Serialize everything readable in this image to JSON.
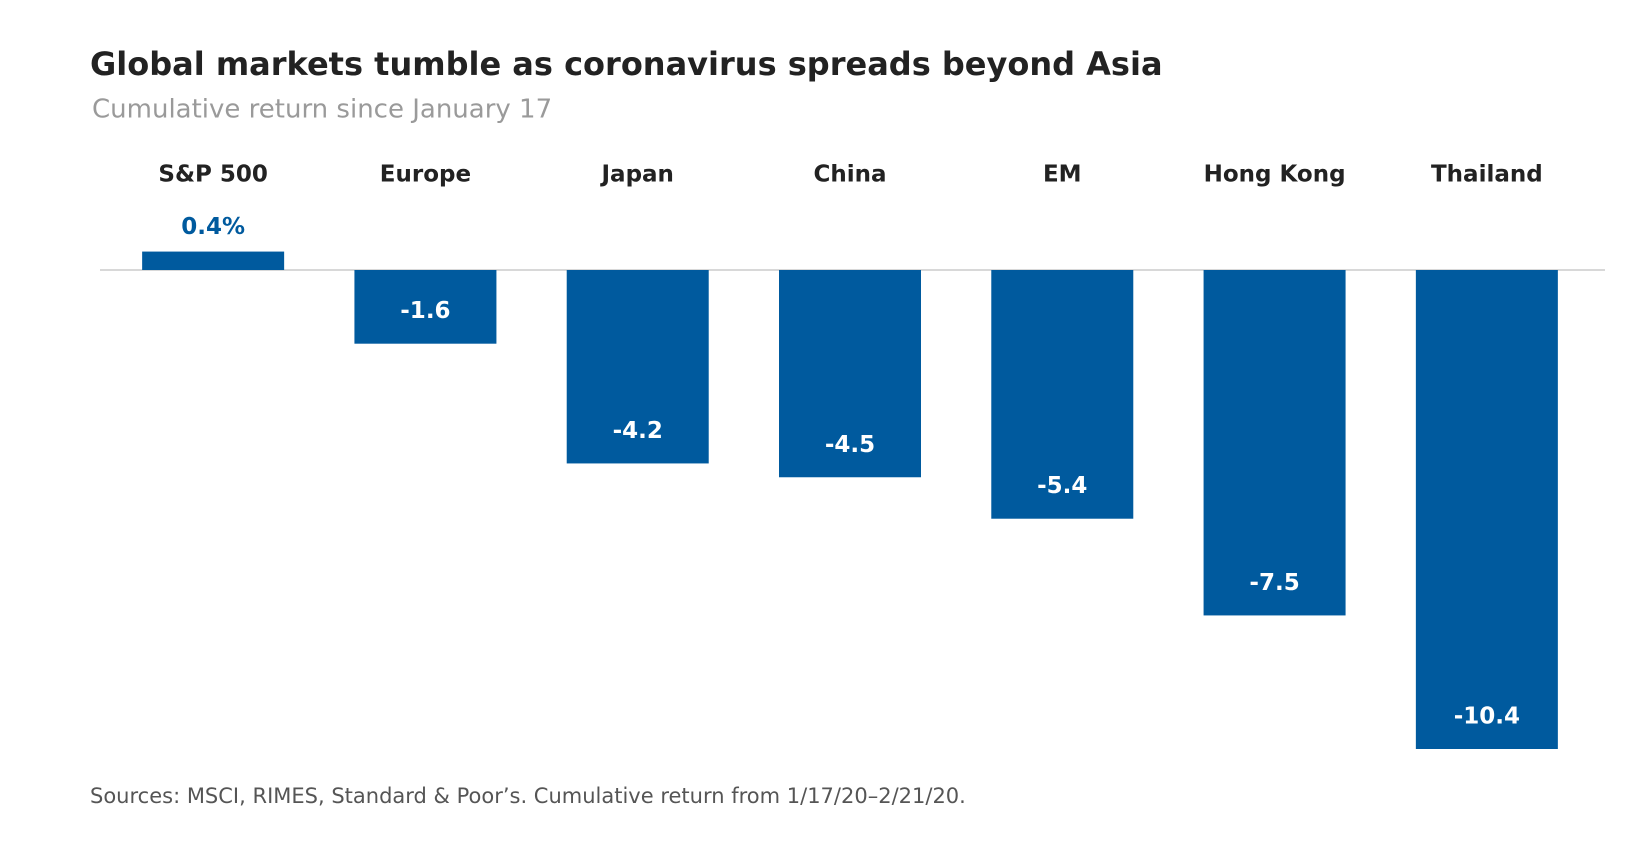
{
  "chart_data": {
    "type": "bar",
    "title": "Global markets tumble as coronavirus spreads beyond Asia",
    "subtitle": "Cumulative return since January 17",
    "categories": [
      "S&P 500",
      "Europe",
      "Japan",
      "China",
      "EM",
      "Hong Kong",
      "Thailand"
    ],
    "values": [
      0.4,
      -1.6,
      -4.2,
      -4.5,
      -5.4,
      -7.5,
      -10.4
    ],
    "value_labels": [
      "0.4%",
      "-1.6",
      "-4.2",
      "-4.5",
      "-5.4",
      "-7.5",
      "-10.4"
    ],
    "color": "#005a9e",
    "source": "Sources: MSCI, RIMES, Standard & Poor’s. Cumulative return from 1/17/20–2/21/20."
  }
}
